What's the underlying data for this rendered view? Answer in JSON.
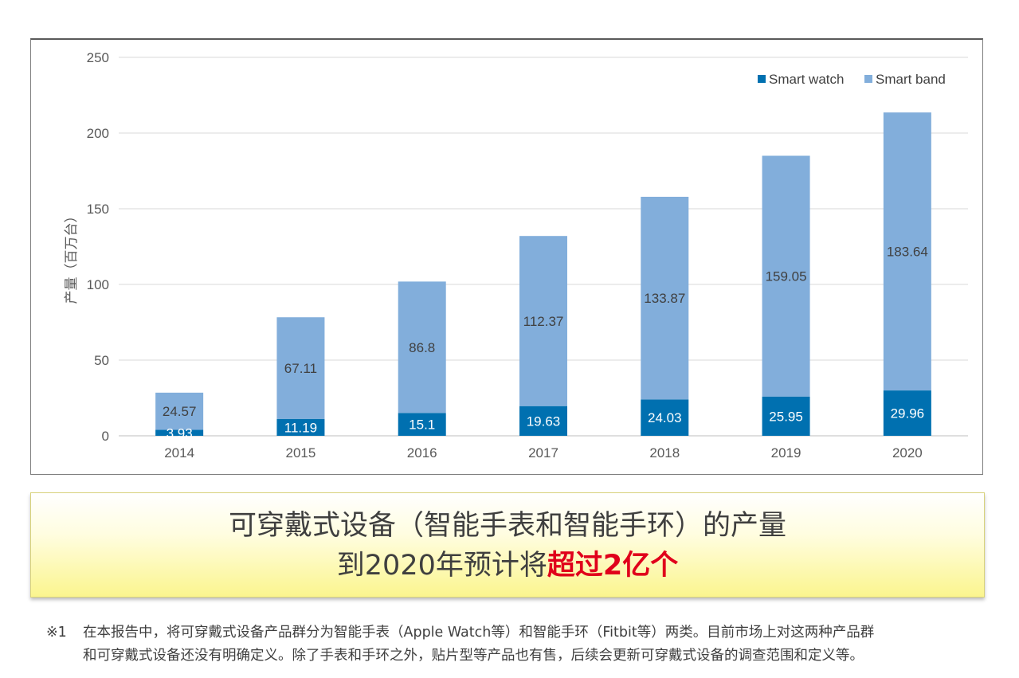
{
  "chart_data": {
    "type": "bar",
    "stacked": true,
    "categories": [
      "2014",
      "2015",
      "2016",
      "2017",
      "2018",
      "2019",
      "2020"
    ],
    "series": [
      {
        "name": "Smart watch",
        "values": [
          3.93,
          11.19,
          15.1,
          19.63,
          24.03,
          25.95,
          29.96
        ],
        "color": "#0070b0",
        "label_color": "#ffffff"
      },
      {
        "name": "Smart band",
        "values": [
          24.57,
          67.11,
          86.8,
          112.37,
          133.87,
          159.05,
          183.64
        ],
        "color": "#82aedb",
        "label_color": "#404040"
      }
    ],
    "data_labels": [
      [
        "3.93",
        "11.19",
        "15.1",
        "19.63",
        "24.03",
        "25.95",
        "29.96"
      ],
      [
        "24.57",
        "67.11",
        "86.8",
        "112.37",
        "133.87",
        "159.05",
        "183.64"
      ]
    ],
    "ylabel": "产量（百万台）",
    "ylim": [
      0,
      250
    ],
    "yticks": [
      "0",
      "50",
      "100",
      "150",
      "200",
      "250"
    ],
    "grid": true,
    "legend_position": "top-right"
  },
  "callout": {
    "line1": "可穿戴式设备（智能手表和智能手环）的产量",
    "line2_prefix": "到2020年预计将",
    "line2_highlight": "超过2亿个"
  },
  "footnote": {
    "mark": "※1",
    "line1": "在本报告中，将可穿戴式设备产品群分为智能手表（Apple Watch等）和智能手环（Fitbit等）两类。目前市场上对这两种产品群",
    "line2": "和可穿戴式设备还没有明确定义。除了手表和手环之外，贴片型等产品也有售，后续会更新可穿戴式设备的调查范围和定义等。"
  }
}
